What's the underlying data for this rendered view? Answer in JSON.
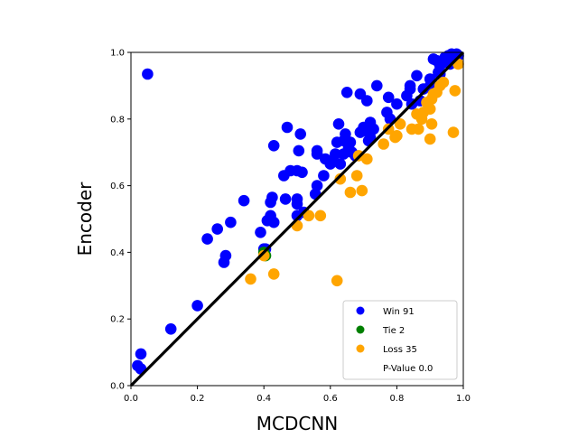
{
  "chart_data": {
    "type": "scatter",
    "xlabel": "MCDCNN",
    "ylabel": "Encoder",
    "xlim": [
      0.0,
      1.0
    ],
    "ylim": [
      0.0,
      1.0
    ],
    "xticks": [
      "0.0",
      "0.2",
      "0.4",
      "0.6",
      "0.8",
      "1.0"
    ],
    "yticks": [
      "0.0",
      "0.2",
      "0.4",
      "0.6",
      "0.8",
      "1.0"
    ],
    "grid": false,
    "legend_position": "lower-right",
    "diagonal_line": true,
    "series": [
      {
        "name": "Win 91",
        "color": "#0000ff",
        "points": [
          [
            0.02,
            0.06
          ],
          [
            0.03,
            0.05
          ],
          [
            0.03,
            0.095
          ],
          [
            0.05,
            0.935
          ],
          [
            0.12,
            0.17
          ],
          [
            0.2,
            0.24
          ],
          [
            0.23,
            0.44
          ],
          [
            0.26,
            0.47
          ],
          [
            0.28,
            0.37
          ],
          [
            0.285,
            0.39
          ],
          [
            0.3,
            0.49
          ],
          [
            0.34,
            0.555
          ],
          [
            0.39,
            0.46
          ],
          [
            0.4,
            0.41
          ],
          [
            0.405,
            0.41
          ],
          [
            0.41,
            0.495
          ],
          [
            0.42,
            0.51
          ],
          [
            0.42,
            0.55
          ],
          [
            0.425,
            0.565
          ],
          [
            0.43,
            0.49
          ],
          [
            0.43,
            0.72
          ],
          [
            0.46,
            0.63
          ],
          [
            0.465,
            0.56
          ],
          [
            0.47,
            0.775
          ],
          [
            0.48,
            0.645
          ],
          [
            0.5,
            0.51
          ],
          [
            0.5,
            0.56
          ],
          [
            0.5,
            0.545
          ],
          [
            0.5,
            0.645
          ],
          [
            0.505,
            0.705
          ],
          [
            0.51,
            0.755
          ],
          [
            0.515,
            0.64
          ],
          [
            0.52,
            0.52
          ],
          [
            0.555,
            0.575
          ],
          [
            0.56,
            0.6
          ],
          [
            0.56,
            0.695
          ],
          [
            0.56,
            0.705
          ],
          [
            0.58,
            0.63
          ],
          [
            0.585,
            0.68
          ],
          [
            0.6,
            0.665
          ],
          [
            0.605,
            0.675
          ],
          [
            0.615,
            0.695
          ],
          [
            0.62,
            0.73
          ],
          [
            0.625,
            0.785
          ],
          [
            0.63,
            0.665
          ],
          [
            0.64,
            0.695
          ],
          [
            0.64,
            0.735
          ],
          [
            0.645,
            0.755
          ],
          [
            0.65,
            0.88
          ],
          [
            0.655,
            0.715
          ],
          [
            0.66,
            0.73
          ],
          [
            0.665,
            0.7
          ],
          [
            0.675,
            0.69
          ],
          [
            0.69,
            0.76
          ],
          [
            0.69,
            0.875
          ],
          [
            0.7,
            0.775
          ],
          [
            0.705,
            0.765
          ],
          [
            0.71,
            0.855
          ],
          [
            0.715,
            0.735
          ],
          [
            0.72,
            0.79
          ],
          [
            0.72,
            0.745
          ],
          [
            0.73,
            0.77
          ],
          [
            0.74,
            0.9
          ],
          [
            0.77,
            0.82
          ],
          [
            0.775,
            0.865
          ],
          [
            0.78,
            0.8
          ],
          [
            0.8,
            0.845
          ],
          [
            0.83,
            0.87
          ],
          [
            0.84,
            0.89
          ],
          [
            0.84,
            0.9
          ],
          [
            0.845,
            0.845
          ],
          [
            0.86,
            0.93
          ],
          [
            0.87,
            0.855
          ],
          [
            0.88,
            0.89
          ],
          [
            0.9,
            0.9
          ],
          [
            0.9,
            0.92
          ],
          [
            0.91,
            0.98
          ],
          [
            0.92,
            0.975
          ],
          [
            0.925,
            0.94
          ],
          [
            0.93,
            0.935
          ],
          [
            0.93,
            0.96
          ],
          [
            0.94,
            0.97
          ],
          [
            0.945,
            0.985
          ],
          [
            0.95,
            0.98
          ],
          [
            0.955,
            0.99
          ],
          [
            0.96,
            0.965
          ],
          [
            0.965,
            0.995
          ],
          [
            0.97,
            0.985
          ],
          [
            0.975,
            0.97
          ],
          [
            0.98,
            0.995
          ],
          [
            0.985,
            0.99
          ]
        ]
      },
      {
        "name": "Tie 2",
        "color": "#008000",
        "points": [
          [
            0.4,
            0.4
          ],
          [
            0.405,
            0.39
          ]
        ]
      },
      {
        "name": "Loss 35",
        "color": "#ffa500",
        "points": [
          [
            0.36,
            0.32
          ],
          [
            0.4,
            0.39
          ],
          [
            0.43,
            0.335
          ],
          [
            0.5,
            0.48
          ],
          [
            0.535,
            0.51
          ],
          [
            0.57,
            0.51
          ],
          [
            0.62,
            0.315
          ],
          [
            0.63,
            0.62
          ],
          [
            0.66,
            0.58
          ],
          [
            0.68,
            0.63
          ],
          [
            0.685,
            0.69
          ],
          [
            0.695,
            0.585
          ],
          [
            0.71,
            0.68
          ],
          [
            0.76,
            0.725
          ],
          [
            0.775,
            0.77
          ],
          [
            0.795,
            0.745
          ],
          [
            0.8,
            0.75
          ],
          [
            0.81,
            0.785
          ],
          [
            0.845,
            0.77
          ],
          [
            0.86,
            0.815
          ],
          [
            0.865,
            0.77
          ],
          [
            0.875,
            0.8
          ],
          [
            0.88,
            0.82
          ],
          [
            0.89,
            0.85
          ],
          [
            0.9,
            0.83
          ],
          [
            0.9,
            0.74
          ],
          [
            0.905,
            0.86
          ],
          [
            0.905,
            0.785
          ],
          [
            0.91,
            0.875
          ],
          [
            0.92,
            0.88
          ],
          [
            0.93,
            0.9
          ],
          [
            0.94,
            0.91
          ],
          [
            0.97,
            0.76
          ],
          [
            0.975,
            0.885
          ],
          [
            0.985,
            0.965
          ]
        ]
      }
    ],
    "legend": [
      {
        "label": "Win 91",
        "color": "#0000ff"
      },
      {
        "label": "Tie 2",
        "color": "#008000"
      },
      {
        "label": "Loss 35",
        "color": "#ffa500"
      },
      {
        "label": "P-Value 0.0",
        "color": "none"
      }
    ]
  }
}
